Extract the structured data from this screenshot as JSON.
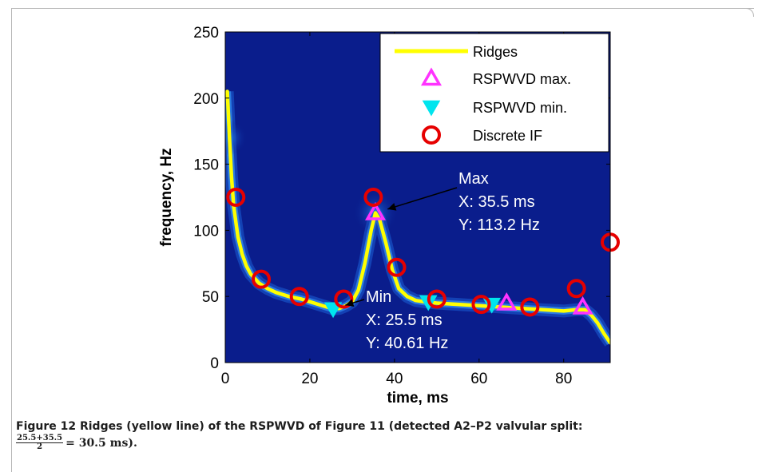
{
  "chart_data": {
    "type": "line",
    "xlabel": "time, ms",
    "ylabel": "frequency, Hz",
    "xlim": [
      0,
      91
    ],
    "ylim": [
      0,
      250
    ],
    "xticks": [
      0,
      20,
      40,
      60,
      80
    ],
    "yticks": [
      0,
      50,
      100,
      150,
      200,
      250
    ],
    "grid": false,
    "legend_position": "top-right",
    "colors": {
      "background": "#0a1d8c",
      "ridge": "#ffff00",
      "max_marker": "#ff33ff",
      "min_marker": "#00e5ee",
      "if_marker": "#e60000"
    },
    "series": [
      {
        "name": "Ridges",
        "style": "line",
        "x": [
          0.5,
          1,
          1.5,
          2,
          3,
          4,
          5,
          6,
          8,
          10,
          12,
          15,
          18,
          20,
          22,
          24,
          25.5,
          27,
          28.5,
          30,
          31.5,
          33,
          34.5,
          35.5,
          36.5,
          38,
          39.5,
          41,
          43,
          45,
          47,
          50,
          55,
          60,
          65,
          70,
          75,
          80,
          83,
          85,
          86.5,
          88,
          89.5,
          91
        ],
        "y": [
          205,
          170,
          140,
          118,
          95,
          82,
          73,
          67,
          60,
          56,
          53,
          50,
          48,
          46,
          44,
          42,
          40.6,
          41,
          43,
          46,
          55,
          75,
          100,
          113.2,
          108,
          90,
          70,
          56,
          50,
          47,
          46,
          45,
          44,
          43,
          42,
          41,
          40,
          39,
          40,
          40,
          36,
          30,
          22,
          15
        ]
      },
      {
        "name": "RSPWVD max.",
        "style": "marker-triangle-up",
        "x": [
          35.5,
          66.5,
          84.5
        ],
        "y": [
          113.2,
          45,
          42
        ]
      },
      {
        "name": "RSPWVD min.",
        "style": "marker-triangle-down",
        "x": [
          25.5,
          48,
          63
        ],
        "y": [
          40.61,
          46,
          44
        ]
      },
      {
        "name": "Discrete IF",
        "style": "marker-circle",
        "x": [
          2.5,
          8.5,
          17.5,
          28,
          35,
          40.5,
          50,
          60.5,
          72,
          83,
          91
        ],
        "y": [
          125,
          63,
          50,
          48,
          125,
          72,
          48,
          44,
          42,
          56,
          91
        ]
      }
    ],
    "annotations": [
      {
        "lines": [
          "Max",
          "X: 35.5 ms",
          "Y: 113.2 Hz"
        ],
        "point": [
          35.5,
          113.2
        ]
      },
      {
        "lines": [
          "Min",
          "X: 25.5 ms",
          "Y: 40.61 Hz"
        ],
        "point": [
          25.5,
          40.61
        ]
      }
    ]
  },
  "caption": {
    "text": "Figure 12 Ridges (yellow line) of the RSPWVD of Figure 11 (detected A2–P2 valvular split:",
    "frac_num": "25.5+35.5",
    "frac_den": "2",
    "formula_rest": "= 30.5 ms)."
  }
}
